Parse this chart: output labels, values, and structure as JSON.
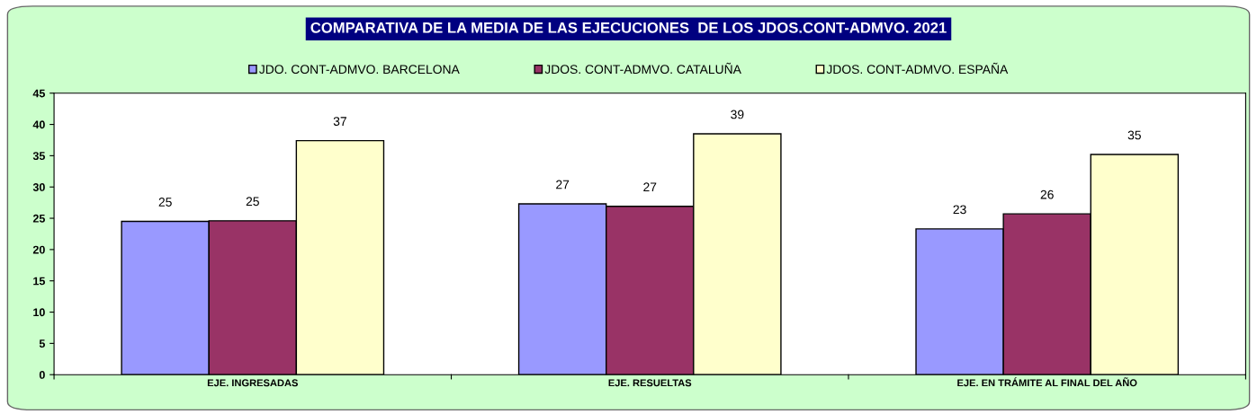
{
  "chart_data": {
    "type": "bar",
    "title": "COMPARATIVA DE LA MEDIA DE LAS EJECUCIONES  DE LOS JDOS.CONT-ADMVO. 2021",
    "categories": [
      "EJE. INGRESADAS",
      "EJE. RESUELTAS",
      "EJE. EN TRÁMITE AL FINAL DEL AÑO"
    ],
    "series": [
      {
        "name": "JDO. CONT-ADMVO. BARCELONA",
        "color": "#9999ff",
        "values": [
          24.5,
          27.3,
          23.3
        ],
        "value_labels": [
          "25",
          "27",
          "23"
        ]
      },
      {
        "name": "JDOS. CONT-ADMVO. CATALUÑA",
        "color": "#993366",
        "values": [
          24.6,
          26.9,
          25.7
        ],
        "value_labels": [
          "25",
          "27",
          "26"
        ]
      },
      {
        "name": "JDOS. CONT-ADMVO. ESPAÑA",
        "color": "#ffffcc",
        "values": [
          37.4,
          38.5,
          35.2
        ],
        "value_labels": [
          "37",
          "39",
          "35"
        ]
      }
    ],
    "ylim": [
      0,
      45
    ],
    "yticks": [
      0,
      5,
      10,
      15,
      20,
      25,
      30,
      35,
      40,
      45
    ],
    "grid": false,
    "legend": "top"
  }
}
